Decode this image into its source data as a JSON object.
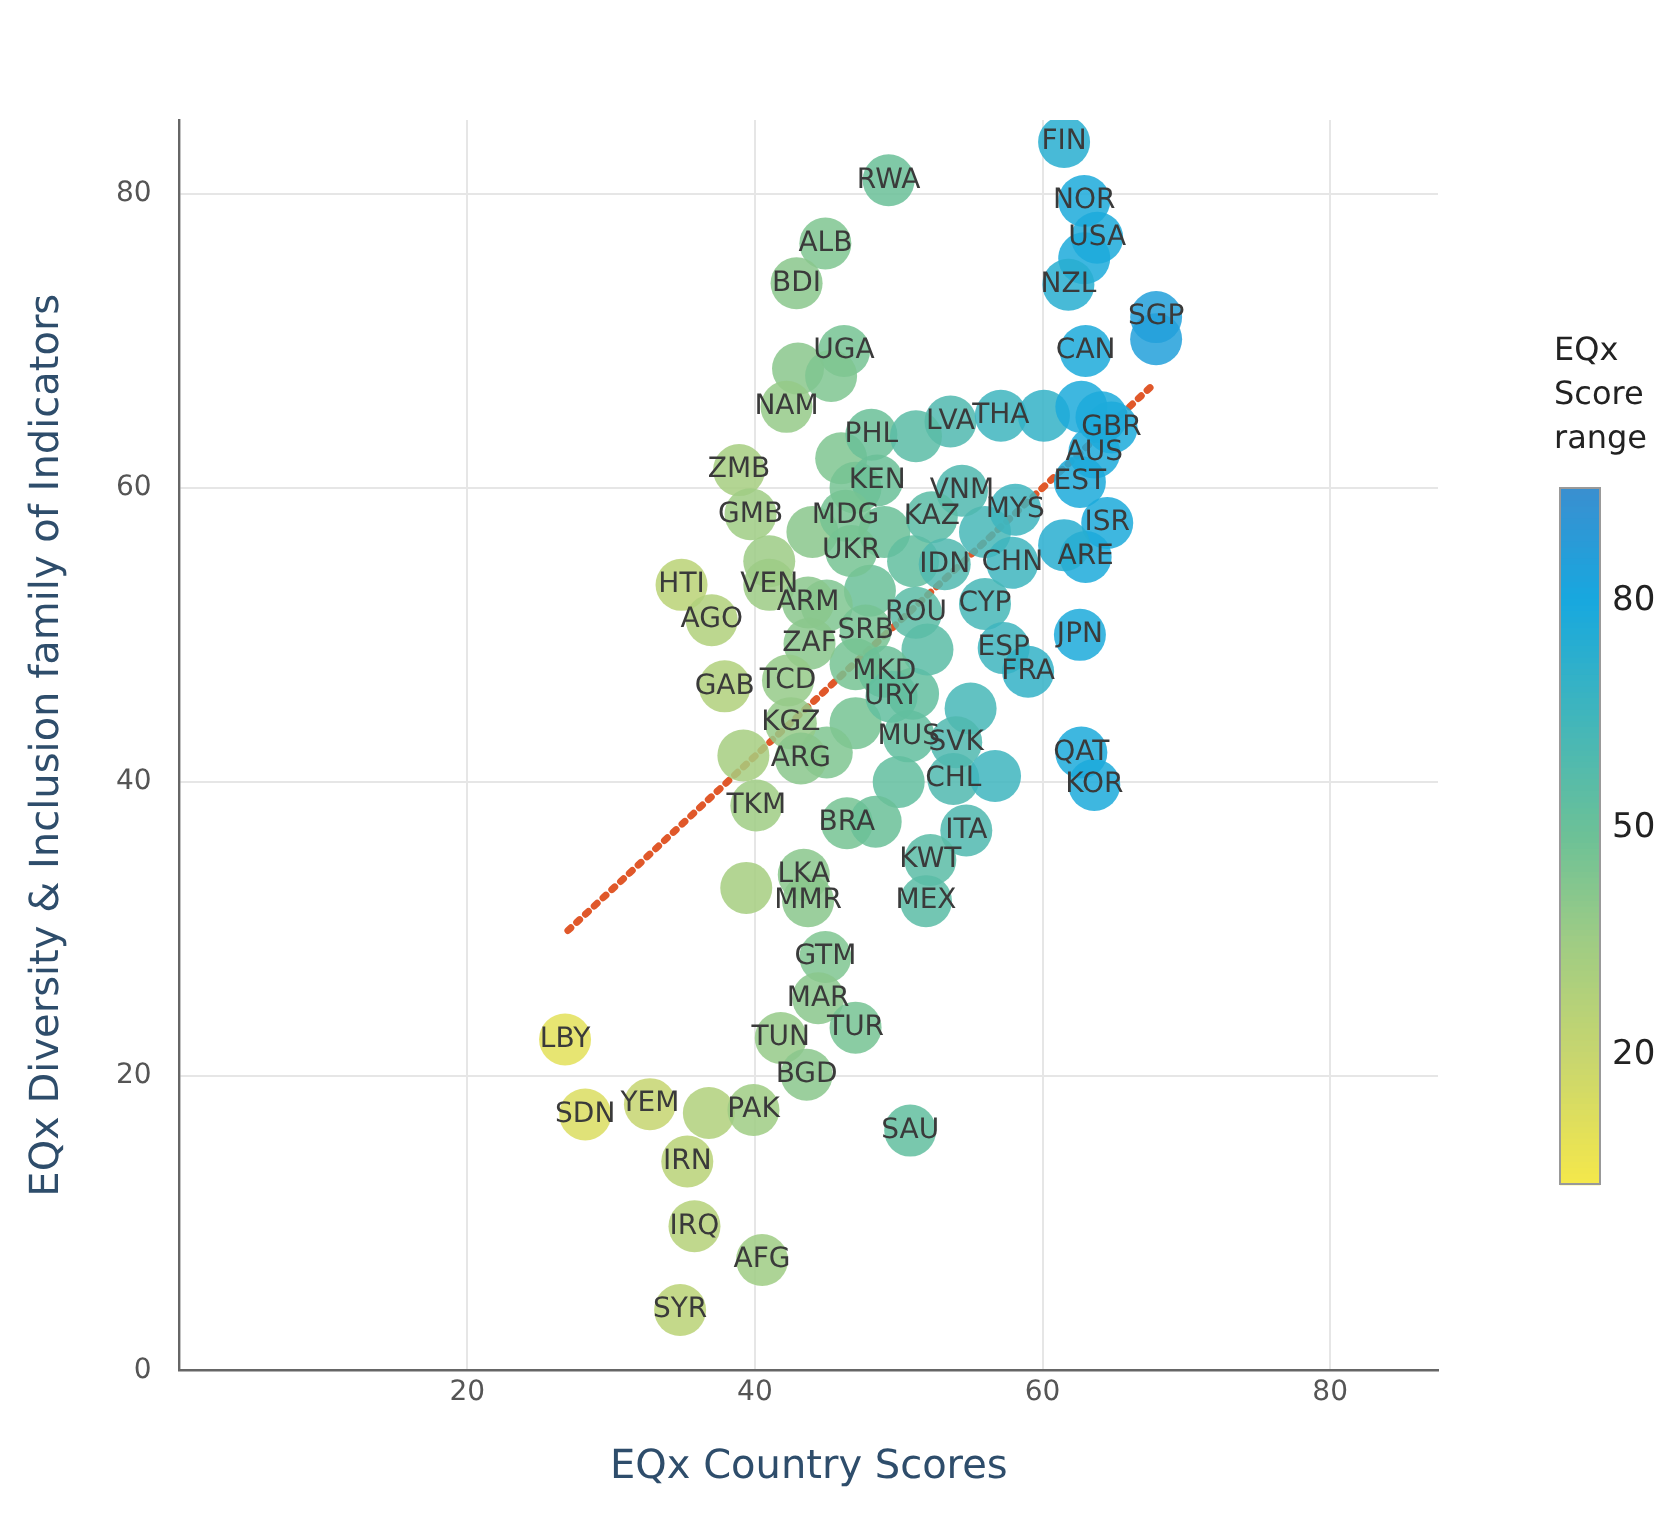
{
  "chart_data": {
    "type": "scatter",
    "xlabel": "EQx Country Scores",
    "ylabel": "EQx Diversity & Inclusion family of Indicators",
    "clabel": "EQx Score range",
    "clim": [
      3,
      95
    ],
    "cticks": [
      20,
      50,
      80
    ],
    "xlim": [
      0,
      87.5
    ],
    "ylim": [
      0,
      85
    ],
    "xticks": [
      20,
      40,
      60,
      80
    ],
    "yticks": [
      0,
      20,
      40,
      60,
      80
    ],
    "grid": true,
    "marker": "circle",
    "series": [
      {
        "x": [
          46,
          47,
          49,
          51,
          48,
          45,
          47,
          51,
          47,
          45,
          50,
          55,
          52,
          56,
          41,
          44,
          49.3,
          61.5,
          62.9,
          63.8,
          62.9,
          61.8,
          67.9,
          67.9,
          63.0,
          44.9,
          42.9,
          46.2,
          43,
          45.3,
          42.2,
          48.1,
          53.6,
          51.2,
          57.1,
          60.1,
          62.7,
          64.1,
          64.8,
          63.6,
          62.6,
          64.5,
          63.0,
          61.5,
          58.1,
          54.4,
          52.3,
          57.9,
          53.2,
          48.5,
          46.3,
          46.7,
          38.9,
          39.7,
          34.9,
          41.0,
          43.7,
          37.0,
          51.2,
          56.0,
          47.7,
          43.8,
          62.6,
          57.3,
          59.0,
          42.3,
          37.9,
          49.0,
          49.5,
          42.5,
          50.7,
          54.0,
          43.2,
          53.8,
          56.7,
          62.7,
          63.6,
          40.1,
          39.2,
          46.4,
          48.4,
          54.7,
          52.2,
          51.9,
          43.4,
          39.4,
          43.7,
          44.9,
          44.4,
          47.0,
          41.8,
          43.6,
          26.8,
          28.2,
          32.7,
          36.8,
          39.9,
          35.3,
          50.8,
          35.8,
          40.5,
          34.8
        ],
        "values": [
          62,
          60,
          57,
          55,
          53,
          52,
          48,
          46,
          44,
          42,
          40,
          45,
          49,
          57,
          55,
          57,
          80.9,
          83.5,
          79.5,
          77.0,
          75.6,
          73.8,
          71.6,
          70.1,
          69.3,
          76.6,
          73.9,
          69.3,
          68.1,
          67.6,
          65.5,
          63.6,
          64.5,
          63.5,
          64.9,
          64.9,
          65.5,
          64.8,
          64.1,
          62.4,
          60.4,
          57.6,
          55.3,
          56.1,
          58.5,
          59.8,
          58.0,
          54.9,
          54.8,
          60.5,
          58.1,
          55.7,
          61.2,
          58.2,
          53.4,
          53.4,
          52.2,
          51.0,
          51.5,
          52.1,
          50.3,
          49.4,
          50.0,
          49.1,
          47.5,
          46.9,
          46.5,
          47.5,
          45.8,
          44.0,
          43.1,
          42.7,
          41.6,
          40.2,
          40.4,
          42.0,
          39.8,
          38.4,
          41.8,
          37.2,
          37.3,
          36.7,
          34.7,
          31.9,
          33.7,
          32.8,
          31.9,
          28.1,
          25.3,
          23.3,
          22.6,
          20.1,
          22.5,
          17.4,
          18.1,
          17.5,
          17.7,
          14.2,
          16.3,
          9.8,
          7.5,
          4.1
        ],
        "colors": [
          "#7fc590",
          "#75c393",
          "#6ac098",
          "#62be9f",
          "#6ac098",
          "#7fc590",
          "#75c393",
          "#62be9f",
          "#75c393",
          "#7fc590",
          "#62be9f",
          "#46b7b7",
          "#5abca6",
          "#46b7b7",
          "#9ccb85",
          "#8ac78c",
          "#6ac098",
          "#28aed0",
          "#1caadb",
          "#1caadb",
          "#1caadb",
          "#28aed0",
          "#22a0da",
          "#22a0da",
          "#1caadb",
          "#7fc590",
          "#8ac78c",
          "#75c393",
          "#8ac78c",
          "#7fc590",
          "#95ca88",
          "#6ac098",
          "#50b9af",
          "#5abca6",
          "#3eb5be",
          "#33b1c7",
          "#1caadb",
          "#1caadb",
          "#1caadb",
          "#1caadb",
          "#1caadb",
          "#1caadb",
          "#1caadb",
          "#28aed0",
          "#3eb5be",
          "#50b9af",
          "#5abca6",
          "#3eb5be",
          "#50b9af",
          "#6ac098",
          "#75c393",
          "#75c393",
          "#a6ce80",
          "#9fcc84",
          "#bad276",
          "#9ccb85",
          "#8ac78c",
          "#b0d07b",
          "#5abca6",
          "#46b7b7",
          "#75c393",
          "#8ac78c",
          "#1caadb",
          "#3eb5be",
          "#33b1c7",
          "#95ca88",
          "#b0d07b",
          "#6ac098",
          "#62be9f",
          "#95ca88",
          "#62be9f",
          "#50b9af",
          "#8ac78c",
          "#50b9af",
          "#3eb5be",
          "#1caadb",
          "#1caadb",
          "#9fcc84",
          "#a6ce80",
          "#75c393",
          "#6ac098",
          "#50b9af",
          "#5abca6",
          "#5abca6",
          "#8ac78c",
          "#a6ce80",
          "#8ac78c",
          "#7fc590",
          "#8ac78c",
          "#75c393",
          "#95ca88",
          "#8ac78c",
          "#e3e059",
          "#dbdd60",
          "#c5d570",
          "#b0d07b",
          "#9fcc84",
          "#b8d277",
          "#62be9f",
          "#b5d179",
          "#9fcc84",
          "#bad276"
        ],
        "value_labels": [
          null,
          null,
          null,
          null,
          null,
          null,
          null,
          null,
          null,
          null,
          null,
          null,
          null,
          null,
          null,
          null,
          "RWA",
          "FIN",
          "NOR",
          "USA",
          null,
          "NZL",
          "SGP",
          null,
          "CAN",
          "ALB",
          "BDI",
          "UGA",
          null,
          null,
          "NAM",
          "PHL",
          "LVA",
          null,
          "THA",
          null,
          null,
          null,
          "GBR",
          "AUS",
          "EST",
          "ISR",
          "ARE",
          null,
          "MYS",
          "VNM",
          "KAZ",
          "CHN",
          "IDN",
          "KEN",
          "MDG",
          "UKR",
          "ZMB",
          "GMB",
          "HTI",
          "VEN",
          "ARM",
          "AGO",
          "ROU",
          "CYP",
          "SRB",
          "ZAF",
          "JPN",
          "ESP",
          "FRA",
          "TCD",
          "GAB",
          "MKD",
          "URY",
          "KGZ",
          "MUS",
          "SVK",
          "ARG",
          "CHL",
          null,
          "QAT",
          "KOR",
          "TKM",
          null,
          "BRA",
          null,
          "ITA",
          "KWT",
          "MEX",
          "LKA",
          null,
          "MMR",
          "GTM",
          "MAR",
          "TUR",
          "TUN",
          "BGD",
          "LBY",
          "SDN",
          "YEM",
          null,
          "PAK",
          "IRN",
          "SAU",
          "IRQ",
          "AFG",
          "SYR"
        ]
      },
      {
        "type": "line",
        "x": [
          27.0,
          67.8
        ],
        "values": [
          29.9,
          67.1
        ],
        "color": "#e0582a",
        "line_style": "dotted",
        "marker": "none"
      }
    ]
  }
}
